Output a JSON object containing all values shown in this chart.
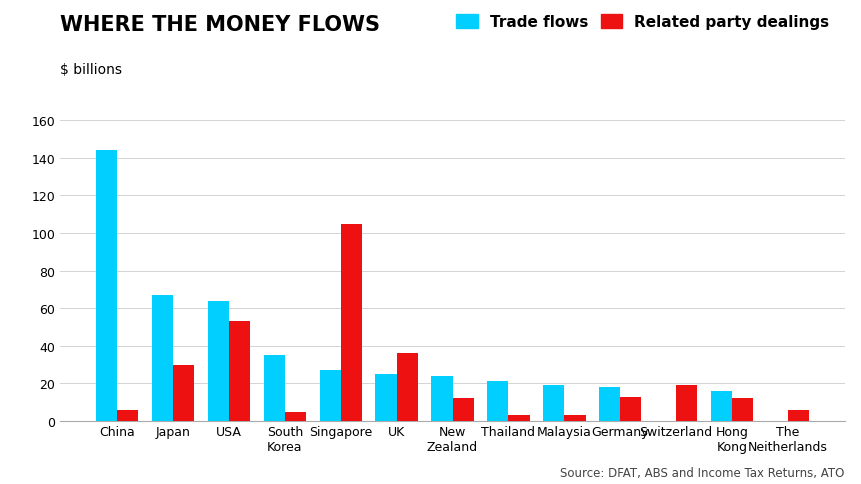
{
  "title": "WHERE THE MONEY FLOWS",
  "subtitle": "$ billions",
  "source": "Source: DFAT, ABS and Income Tax Returns, ATO",
  "categories": [
    "China",
    "Japan",
    "USA",
    "South\nKorea",
    "Singapore",
    "UK",
    "New\nZealand",
    "Thailand",
    "Malaysia",
    "Germany",
    "Switzerland",
    "Hong\nKong",
    "The\nNeitherlands"
  ],
  "trade_flows": [
    144,
    67,
    64,
    35,
    27,
    25,
    24,
    21,
    19,
    18,
    0,
    16,
    0
  ],
  "related_party": [
    6,
    30,
    53,
    5,
    105,
    36,
    12,
    3,
    3,
    13,
    19,
    12,
    6
  ],
  "trade_color": "#00CFFF",
  "related_color": "#EE1111",
  "ylim": [
    0,
    160
  ],
  "yticks": [
    0,
    20,
    40,
    60,
    80,
    100,
    120,
    140,
    160
  ],
  "bar_width": 0.38,
  "background_color": "#ffffff",
  "legend_trade": "Trade flows",
  "legend_related": "Related party dealings",
  "title_fontsize": 15,
  "subtitle_fontsize": 10,
  "axis_fontsize": 9,
  "source_fontsize": 8.5
}
